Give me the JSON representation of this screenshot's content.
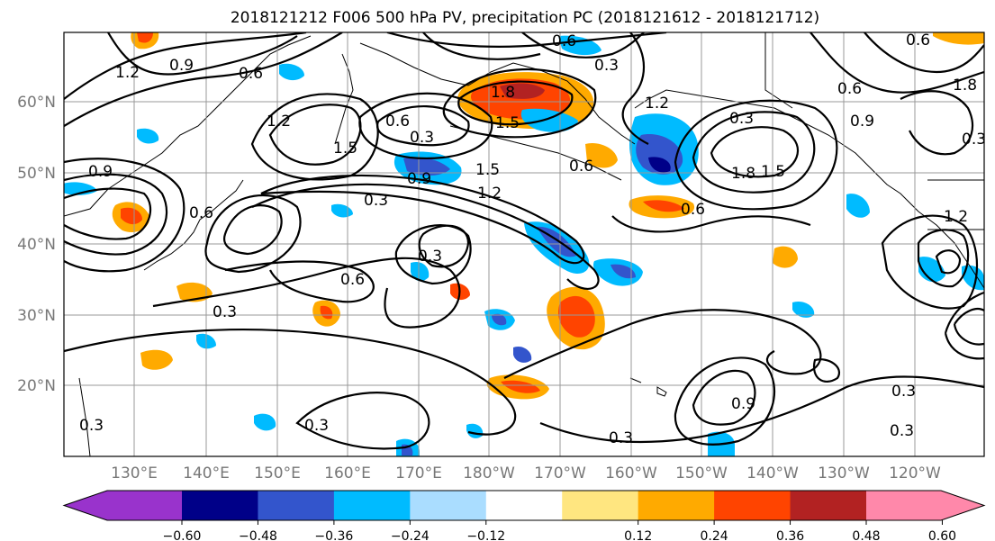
{
  "title": "2018121212 F006 500 hPa PV, precipitation PC (2018121612 - 2018121712)",
  "lat_labels": [
    "60°N",
    "50°N",
    "40°N",
    "30°N",
    "20°N"
  ],
  "lon_labels": [
    "130°E",
    "140°E",
    "150°E",
    "160°E",
    "170°E",
    "180°W",
    "170°W",
    "160°W",
    "150°W",
    "140°W",
    "130°W",
    "120°W"
  ],
  "colorbar": {
    "ticks": [
      "−0.60",
      "−0.48",
      "−0.36",
      "−0.24",
      "−0.12",
      "0.12",
      "0.24",
      "0.36",
      "0.48",
      "0.60"
    ],
    "colors": [
      "#9933cc",
      "#000088",
      "#3355cc",
      "#00bbff",
      "#aaddff",
      "#ffffff",
      "#ffe680",
      "#ffaa00",
      "#ff4400",
      "#b22222",
      "#ff88aa"
    ]
  },
  "contour_labels": [
    "0.6",
    "1.2",
    "0.9",
    "0.6",
    "1.2",
    "1.5",
    "0.3",
    "1.8",
    "1.5",
    "0.6",
    "0.3",
    "0.9",
    "1.5",
    "1.2",
    "0.3",
    "0.6",
    "0.3",
    "0.6",
    "1.8",
    "1.5",
    "0.9",
    "0.6",
    "0.3",
    "0.3",
    "0.9",
    "0.3",
    "0.6",
    "0.3",
    "0.9",
    "1.2",
    "0.3",
    "0.3",
    "0.6",
    "0.3",
    "0.6",
    "1.2",
    "1.8",
    "0.3"
  ],
  "colors": {
    "contour": "#000000",
    "grid": "#999999",
    "coast": "#000000"
  }
}
